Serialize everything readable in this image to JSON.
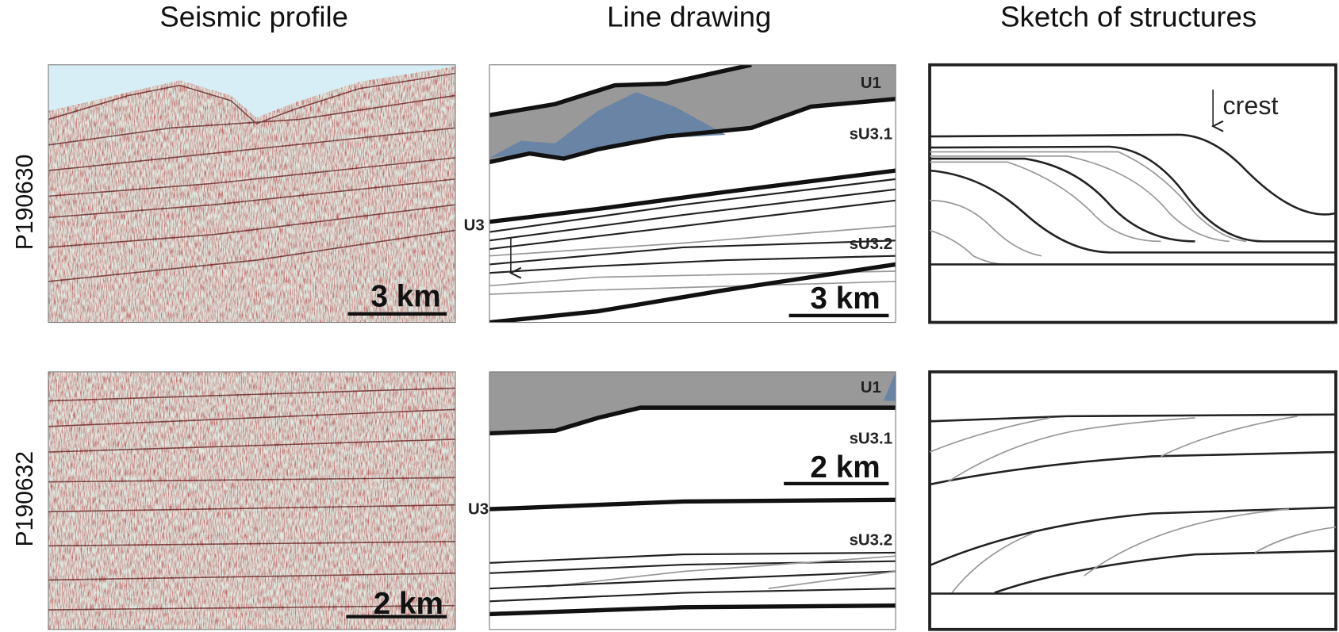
{
  "columns": [
    "Seismic profile",
    "Line drawing",
    "Sketch of structures"
  ],
  "rows": [
    {
      "label": "P190630",
      "seismic_scale": "3 km",
      "drawing": {
        "labels": [
          "U1",
          "sU3.1",
          "U3",
          "sU3.2"
        ],
        "scale": "3 km"
      },
      "sketch_label": "crest"
    },
    {
      "label": "P190632",
      "seismic_scale": "2 km",
      "drawing": {
        "labels": [
          "U1",
          "sU3.1",
          "U3",
          "sU3.2"
        ],
        "scale": "2 km"
      }
    }
  ]
}
